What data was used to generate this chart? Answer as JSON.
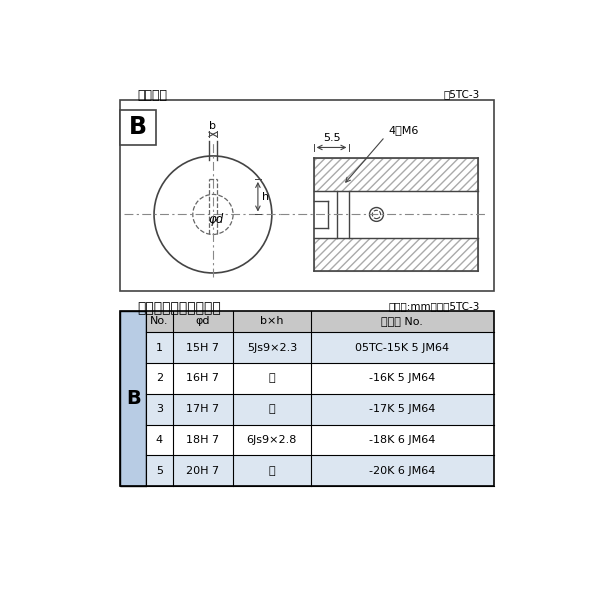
{
  "bg_color": "#ffffff",
  "border_color": "#000000",
  "title_diagram": "軸穴形状",
  "title_fig_no": "図5TC-3",
  "table_title": "軸穴形状コード一覧表",
  "table_unit": "（単位:mm）　表5TC-3",
  "b_label": "B",
  "dim_55": "5.5",
  "dim_4m6": "4－M6",
  "dim_b": "b",
  "dim_h": "h",
  "dim_phid": "φd",
  "col_headers": [
    "No.",
    "φd",
    "b×h",
    "コード No."
  ],
  "rows": [
    [
      "1",
      "15H 7",
      "5Js9×2.3",
      "05TC-15K 5 JM64"
    ],
    [
      "2",
      "16H 7",
      "〃",
      "-16K 5 JM64"
    ],
    [
      "3",
      "17H 7",
      "〃",
      "-17K 5 JM64"
    ],
    [
      "4",
      "18H 7",
      "6Js9×2.8",
      "-18K 6 JM64"
    ],
    [
      "5",
      "20H 7",
      "〃",
      "-20K 6 JM64"
    ]
  ],
  "row_alt_color": "#dce6f1",
  "row_normal_color": "#ffffff",
  "header_color": "#c8c8c8",
  "b_col_color": "#b8cce4",
  "table_border": "#000000",
  "line_color": "#444444",
  "dash_color": "#666666",
  "hatch_color": "#aaaaaa",
  "centerline_color": "#888888"
}
